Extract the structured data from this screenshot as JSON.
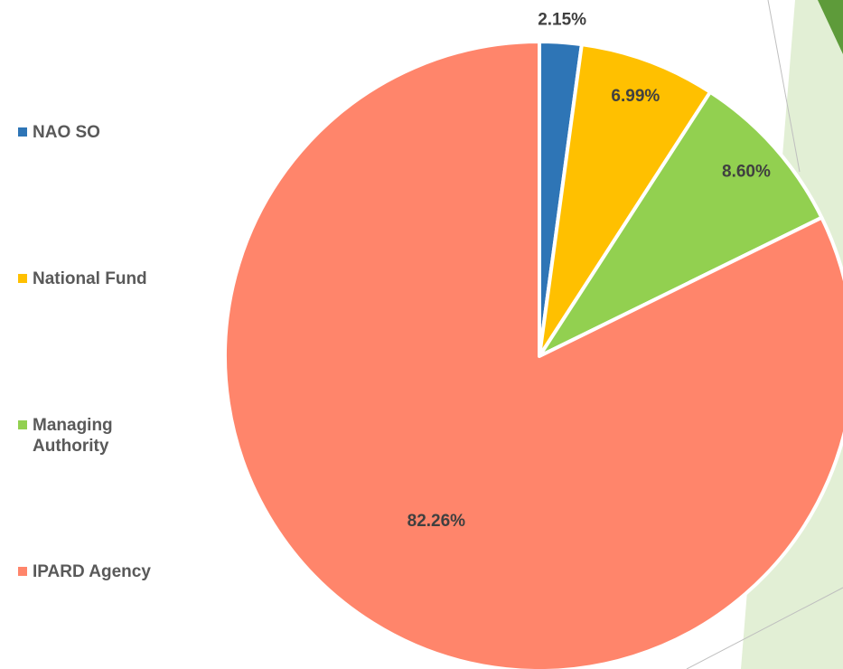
{
  "chart_data": {
    "type": "pie",
    "categories": [
      "NAO SO",
      "National Fund",
      "Managing Authority",
      "IPARD Agency"
    ],
    "values": [
      2.15,
      6.99,
      8.6,
      82.26
    ],
    "value_labels": [
      "2.15%",
      "6.99%",
      "8.60%",
      "82.26%"
    ],
    "colors": [
      "#2e75b6",
      "#ffc000",
      "#92d050",
      "#ff856b"
    ],
    "legend": "left"
  }
}
